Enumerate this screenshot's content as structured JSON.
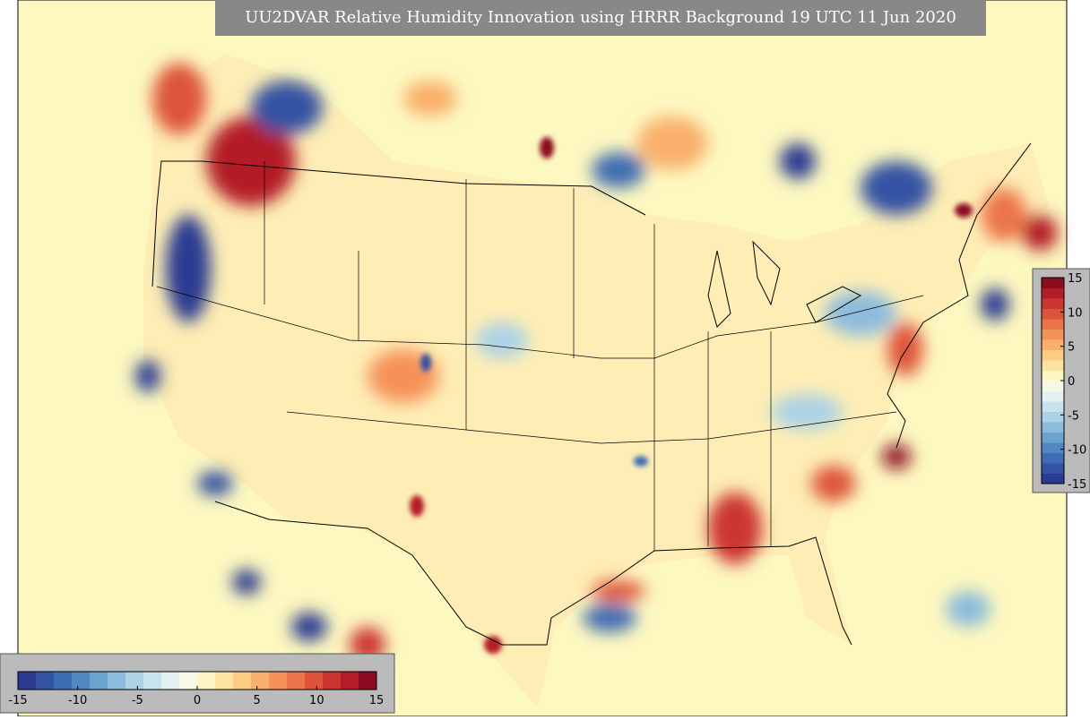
{
  "title": "UU2DVAR Relative Humidity Innovation using HRRR Background 19 UTC 11 Jun 2020",
  "colorbars": [
    {
      "orientation": "horizontal",
      "lim": [
        -15,
        15
      ],
      "ticks": [
        -15,
        -10,
        -5,
        0,
        5,
        10,
        15
      ]
    },
    {
      "orientation": "vertical",
      "lim": [
        -15,
        15
      ],
      "ticks": [
        -15,
        -10,
        -5,
        0,
        5,
        10,
        15
      ]
    }
  ],
  "colors": [
    "#2c3a91",
    "#3452a3",
    "#3f6db3",
    "#5288c2",
    "#6ba2cf",
    "#8cbcdc",
    "#acd2e6",
    "#c9e3ee",
    "#e3f1f1",
    "#f6f9e6",
    "#fdf6c4",
    "#fde3a0",
    "#fccc84",
    "#f9b06c",
    "#f5925a",
    "#ec744a",
    "#de543b",
    "#cc3630",
    "#b31d27",
    "#8e0c21"
  ]
}
